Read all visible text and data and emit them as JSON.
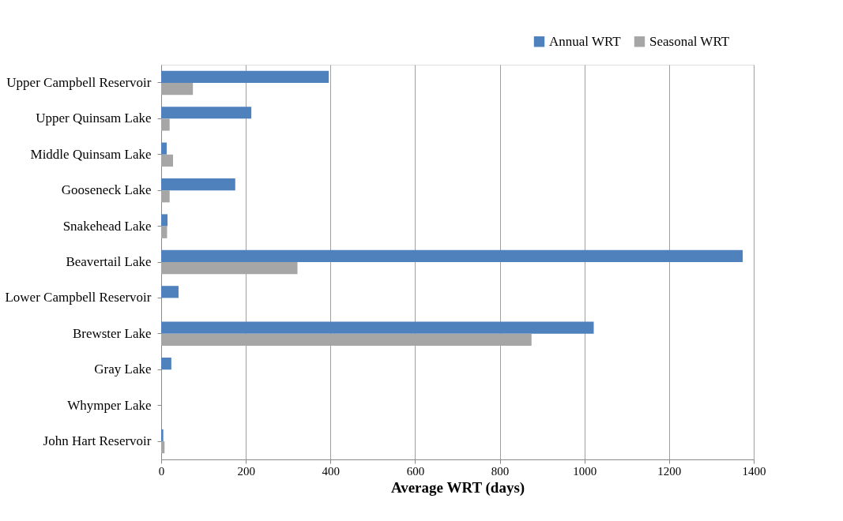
{
  "chart_data": {
    "type": "bar",
    "orientation": "horizontal",
    "xlabel": "Average WRT (days)",
    "categories": [
      "Upper Campbell Reservoir",
      "Upper Quinsam Lake",
      "Middle Quinsam Lake",
      "Gooseneck Lake",
      "Snakehead Lake",
      "Beavertail Lake",
      "Lower Campbell Reservoir",
      "Brewster Lake",
      "Gray Lake",
      "Whymper Lake",
      "John Hart Reservoir"
    ],
    "series": [
      {
        "name": "Annual WRT",
        "color": "#4f81bd",
        "values": [
          396,
          213,
          13,
          175,
          15,
          1374,
          41,
          1022,
          24,
          null,
          5
        ]
      },
      {
        "name": "Seasonal WRT",
        "color": "#a6a6a6",
        "values": [
          75,
          20,
          28,
          20,
          14,
          322,
          null,
          875,
          null,
          null,
          8
        ]
      }
    ],
    "xlim": [
      0,
      1400
    ],
    "xticks": [
      0,
      200,
      400,
      600,
      800,
      1000,
      1200,
      1400
    ],
    "grid": "x",
    "legend": "top right"
  }
}
